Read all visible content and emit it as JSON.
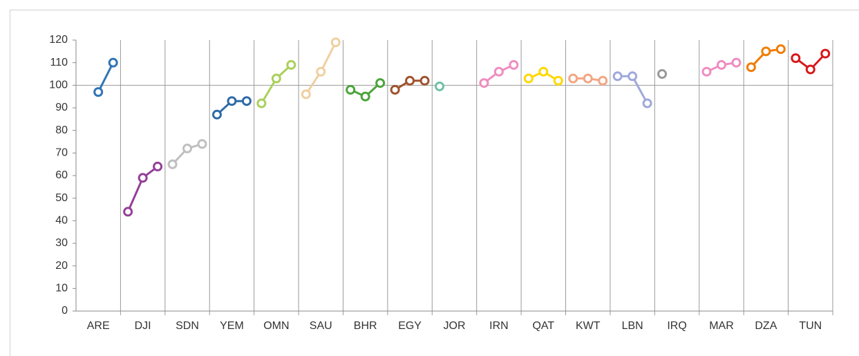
{
  "chart_data": {
    "type": "line",
    "ylim": [
      0,
      120
    ],
    "yticks": [
      0,
      10,
      20,
      30,
      40,
      50,
      60,
      70,
      80,
      90,
      100,
      110,
      120
    ],
    "hline": 100,
    "series": [
      {
        "name": "ARE",
        "color": "#2e75b6",
        "values": [
          null,
          97,
          110
        ]
      },
      {
        "name": "DJI",
        "color": "#933f98",
        "values": [
          44,
          59,
          64
        ]
      },
      {
        "name": "SDN",
        "color": "#bfbfbf",
        "values": [
          65,
          72,
          74
        ]
      },
      {
        "name": "YEM",
        "color": "#2e6aa8",
        "values": [
          87,
          93,
          93
        ]
      },
      {
        "name": "OMN",
        "color": "#a9d05a",
        "values": [
          92,
          103,
          109
        ]
      },
      {
        "name": "SAU",
        "color": "#f0cfa0",
        "values": [
          96,
          106,
          119
        ]
      },
      {
        "name": "BHR",
        "color": "#4aa43a",
        "values": [
          98,
          95,
          101
        ]
      },
      {
        "name": "EGY",
        "color": "#a0522d",
        "values": [
          98,
          102,
          102
        ]
      },
      {
        "name": "JOR",
        "color": "#6fc0a6",
        "values": [
          99.5,
          null,
          null
        ]
      },
      {
        "name": "IRN",
        "color": "#f08cc0",
        "values": [
          101,
          106,
          109
        ]
      },
      {
        "name": "QAT",
        "color": "#ffd700",
        "values": [
          103,
          106,
          102
        ]
      },
      {
        "name": "KWT",
        "color": "#f4a582",
        "values": [
          103,
          103,
          102
        ]
      },
      {
        "name": "LBN",
        "color": "#9fa8da",
        "values": [
          104,
          104,
          92
        ]
      },
      {
        "name": "IRQ",
        "color": "#999999",
        "values": [
          105,
          null,
          null
        ]
      },
      {
        "name": "MAR",
        "color": "#f08cc0",
        "values": [
          106,
          109,
          110
        ]
      },
      {
        "name": "DZA",
        "color": "#f07d00",
        "values": [
          108,
          115,
          116
        ]
      },
      {
        "name": "TUN",
        "color": "#d7191c",
        "values": [
          112,
          107,
          114
        ]
      }
    ]
  }
}
